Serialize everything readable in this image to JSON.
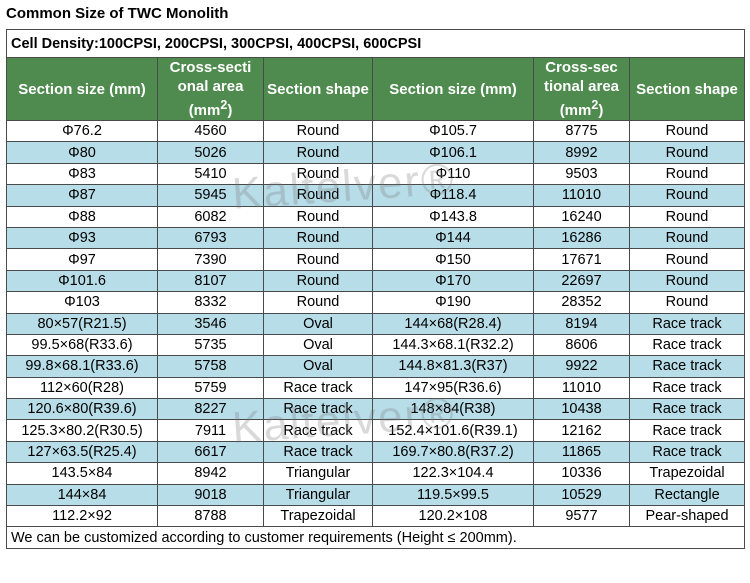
{
  "title": "Common Size of TWC Monolith",
  "density": "Cell Density:100CPSI, 200CPSI, 300CPSI, 400CPSI, 600CPSI",
  "headers": {
    "section_size": "Section size (mm)",
    "area_line1": "Cross-secti",
    "area_line2": "onal area",
    "area_unit": "(mm",
    "area_sup": "2",
    "area_close": ")",
    "area2_line1": "Cross-sec",
    "area2_line2": "tional area",
    "section_shape": "Section shape"
  },
  "rows": [
    {
      "s1": "Φ76.2",
      "a1": "4560",
      "sh1": "Round",
      "s2": "Φ105.7",
      "a2": "8775",
      "sh2": "Round"
    },
    {
      "s1": "Φ80",
      "a1": "5026",
      "sh1": "Round",
      "s2": "Φ106.1",
      "a2": "8992",
      "sh2": "Round"
    },
    {
      "s1": "Φ83",
      "a1": "5410",
      "sh1": "Round",
      "s2": "Φ110",
      "a2": "9503",
      "sh2": "Round"
    },
    {
      "s1": "Φ87",
      "a1": "5945",
      "sh1": "Round",
      "s2": "Φ118.4",
      "a2": "11010",
      "sh2": "Round"
    },
    {
      "s1": "Φ88",
      "a1": "6082",
      "sh1": "Round",
      "s2": "Φ143.8",
      "a2": "16240",
      "sh2": "Round"
    },
    {
      "s1": "Φ93",
      "a1": "6793",
      "sh1": "Round",
      "s2": "Φ144",
      "a2": "16286",
      "sh2": "Round"
    },
    {
      "s1": "Φ97",
      "a1": "7390",
      "sh1": "Round",
      "s2": "Φ150",
      "a2": "17671",
      "sh2": "Round"
    },
    {
      "s1": "Φ101.6",
      "a1": "8107",
      "sh1": "Round",
      "s2": "Φ170",
      "a2": "22697",
      "sh2": "Round"
    },
    {
      "s1": "Φ103",
      "a1": "8332",
      "sh1": "Round",
      "s2": "Φ190",
      "a2": "28352",
      "sh2": "Round"
    },
    {
      "s1": "80×57(R21.5)",
      "a1": "3546",
      "sh1": "Oval",
      "s2": "144×68(R28.4)",
      "a2": "8194",
      "sh2": "Race track"
    },
    {
      "s1": "99.5×68(R33.6)",
      "a1": "5735",
      "sh1": "Oval",
      "s2": "144.3×68.1(R32.2)",
      "a2": "8606",
      "sh2": "Race track"
    },
    {
      "s1": "99.8×68.1(R33.6)",
      "a1": "5758",
      "sh1": "Oval",
      "s2": "144.8×81.3(R37)",
      "a2": "9922",
      "sh2": "Race track"
    },
    {
      "s1": "112×60(R28)",
      "a1": "5759",
      "sh1": "Race track",
      "s2": "147×95(R36.6)",
      "a2": "11010",
      "sh2": "Race track"
    },
    {
      "s1": "120.6×80(R39.6)",
      "a1": "8227",
      "sh1": "Race track",
      "s2": "148×84(R38)",
      "a2": "10438",
      "sh2": "Race track"
    },
    {
      "s1": "125.3×80.2(R30.5)",
      "a1": "7911",
      "sh1": "Race track",
      "s2": "152.4×101.6(R39.1)",
      "a2": "12162",
      "sh2": "Race track"
    },
    {
      "s1": "127×63.5(R25.4)",
      "a1": "6617",
      "sh1": "Race track",
      "s2": "169.7×80.8(R37.2)",
      "a2": "11865",
      "sh2": "Race track"
    },
    {
      "s1": "143.5×84",
      "a1": "8942",
      "sh1": "Triangular",
      "s2": "122.3×104.4",
      "a2": "10336",
      "sh2": "Trapezoidal"
    },
    {
      "s1": "144×84",
      "a1": "9018",
      "sh1": "Triangular",
      "s2": "119.5×99.5",
      "a2": "10529",
      "sh2": "Rectangle"
    },
    {
      "s1": "112.2×92",
      "a1": "8788",
      "sh1": "Trapezoidal",
      "s2": "120.2×108",
      "a2": "9577",
      "sh2": "Pear-shaped"
    }
  ],
  "footer": "We can be customized according to customer requirements (Height ≤ 200mm).",
  "watermark": "Kaltelver®",
  "colors": {
    "header_bg": "#4f8b4e",
    "alt_row": "#b7dde8"
  }
}
